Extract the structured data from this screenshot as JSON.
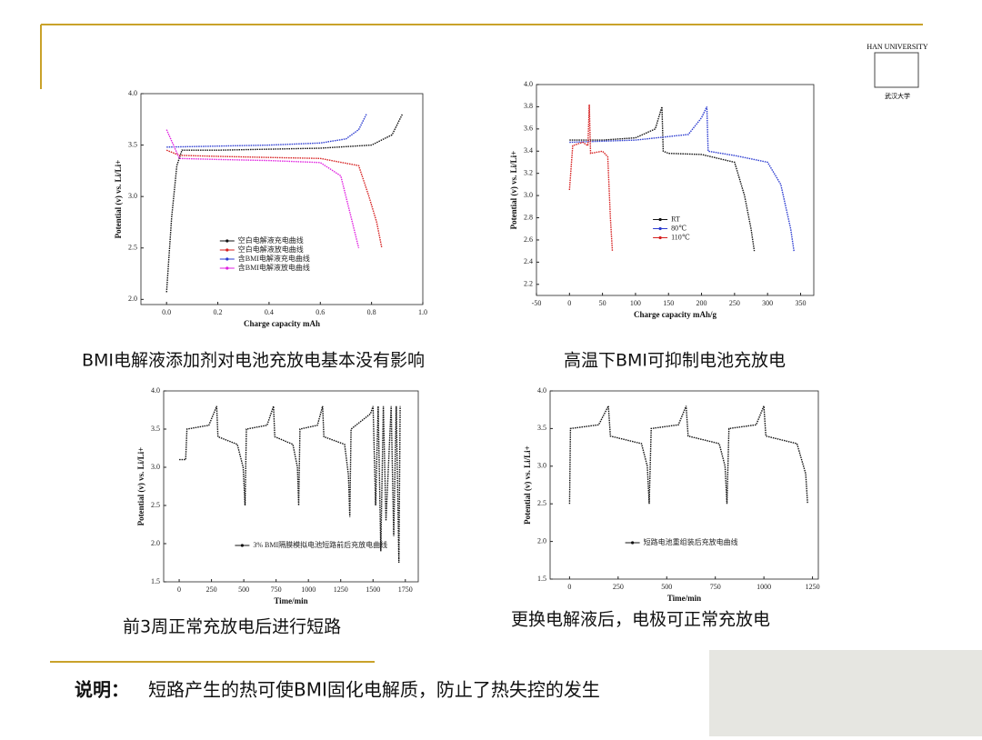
{
  "slide": {
    "logo_top": "HAN UNIVERSITY",
    "logo_bottom": "武汉大学",
    "note_label": "说明：",
    "note_text": "短路产生的热可使BMI固化电解质，防止了热失控的发生"
  },
  "chart_data": [
    {
      "type": "line",
      "caption": "BMI电解液添加剂对电池充放电基本没有影响",
      "xlabel": "Charge capacity mAh",
      "ylabel": "Potential (v) vs. Li/Li+",
      "xlim": [
        -0.1,
        1.0
      ],
      "xticks": [
        {
          "value": 0,
          "label": "0.0"
        },
        0.2,
        0.4,
        0.6,
        0.8,
        {
          "value": 1,
          "label": "1.0"
        }
      ],
      "ylim": [
        1.95,
        4.0
      ],
      "yticks": [
        {
          "value": 2,
          "label": "2.0"
        },
        2.5,
        {
          "value": 3,
          "label": "3.0"
        },
        3.5,
        {
          "value": 4,
          "label": "4.0"
        }
      ],
      "legend": "lower center",
      "series": [
        {
          "name": "空白电解液充电曲线",
          "color": "#111111",
          "x": [
            0,
            0.02,
            0.04,
            0.06,
            0.2,
            0.4,
            0.6,
            0.8,
            0.88,
            0.92
          ],
          "values": [
            2.07,
            2.8,
            3.3,
            3.45,
            3.45,
            3.46,
            3.47,
            3.5,
            3.6,
            3.8
          ]
        },
        {
          "name": "空白电解液放电曲线",
          "color": "#d62020",
          "x": [
            0,
            0.05,
            0.2,
            0.4,
            0.6,
            0.75,
            0.79,
            0.82,
            0.84
          ],
          "values": [
            3.45,
            3.4,
            3.39,
            3.38,
            3.37,
            3.3,
            3.0,
            2.75,
            2.5
          ]
        },
        {
          "name": "含BMI电解液充电曲线",
          "color": "#2a3ad0",
          "x": [
            0,
            0.2,
            0.4,
            0.6,
            0.7,
            0.75,
            0.78
          ],
          "values": [
            3.48,
            3.49,
            3.5,
            3.52,
            3.56,
            3.65,
            3.8
          ]
        },
        {
          "name": "含BMI电解液放电曲线",
          "color": "#e020e0",
          "x": [
            0,
            0.05,
            0.2,
            0.4,
            0.6,
            0.68,
            0.72,
            0.75
          ],
          "values": [
            3.65,
            3.37,
            3.36,
            3.35,
            3.33,
            3.2,
            2.8,
            2.5
          ]
        }
      ]
    },
    {
      "type": "line",
      "caption": "高温下BMI可抑制电池充放电",
      "xlabel": "Charge capacity mAh/g",
      "ylabel": "Potential (v) vs. Li/Li+",
      "xlim": [
        -50,
        370
      ],
      "xticks": [
        -50,
        0,
        50,
        100,
        150,
        200,
        250,
        300,
        350
      ],
      "ylim": [
        2.1,
        4.0
      ],
      "yticks": [
        2.2,
        2.4,
        2.6,
        2.8,
        {
          "value": 3,
          "label": "3.0"
        },
        3.2,
        3.4,
        3.6,
        3.8,
        {
          "value": 4,
          "label": "4.0"
        }
      ],
      "legend": "center",
      "series": [
        {
          "name": "RT",
          "color": "#111111",
          "x": [
            0,
            50,
            100,
            130,
            140,
            142,
            150,
            200,
            250,
            265,
            275,
            280
          ],
          "values": [
            3.5,
            3.5,
            3.52,
            3.6,
            3.8,
            3.4,
            3.38,
            3.37,
            3.3,
            3.0,
            2.7,
            2.5
          ]
        },
        {
          "name": "80℃",
          "color": "#2a3ad0",
          "x": [
            0,
            100,
            180,
            200,
            208,
            210,
            250,
            300,
            320,
            335,
            340
          ],
          "values": [
            3.48,
            3.5,
            3.55,
            3.7,
            3.8,
            3.4,
            3.36,
            3.3,
            3.1,
            2.7,
            2.5
          ]
        },
        {
          "name": "110℃",
          "color": "#d62020",
          "x": [
            0,
            5,
            20,
            28,
            30,
            32,
            50,
            58,
            62,
            65
          ],
          "values": [
            3.05,
            3.45,
            3.48,
            3.45,
            3.82,
            3.38,
            3.4,
            3.35,
            2.8,
            2.5
          ]
        }
      ]
    },
    {
      "type": "line",
      "caption": "前3周正常充放电后进行短路",
      "xlabel": "Time/min",
      "ylabel": "Potential (v) vs. Li/Li+",
      "xlim": [
        -120,
        1850
      ],
      "xticks": [
        0,
        250,
        500,
        750,
        1000,
        1250,
        1500,
        1750
      ],
      "ylim": [
        1.5,
        4.0
      ],
      "yticks": [
        1.5,
        {
          "value": 2,
          "label": "2.0"
        },
        2.5,
        {
          "value": 3,
          "label": "3.0"
        },
        3.5,
        {
          "value": 4,
          "label": "4.0"
        }
      ],
      "legend": "lower center",
      "series": [
        {
          "name": "3% BMI隔膜模拟电池短路前后充放电曲线",
          "color": "#111111",
          "x": [
            0,
            50,
            60,
            230,
            290,
            300,
            450,
            495,
            510,
            520,
            680,
            730,
            740,
            880,
            915,
            925,
            935,
            1070,
            1110,
            1120,
            1280,
            1310,
            1320,
            1330,
            1480,
            1500,
            1520,
            1540,
            1560,
            1580,
            1600,
            1640,
            1660,
            1680,
            1700,
            1710
          ],
          "values": [
            3.1,
            3.1,
            3.5,
            3.55,
            3.8,
            3.4,
            3.3,
            3.0,
            2.5,
            3.5,
            3.55,
            3.8,
            3.4,
            3.3,
            3.0,
            2.5,
            3.5,
            3.55,
            3.8,
            3.4,
            3.3,
            2.9,
            2.35,
            3.5,
            3.7,
            3.8,
            2.5,
            3.8,
            1.9,
            3.8,
            2.3,
            3.8,
            2.1,
            3.8,
            1.75,
            3.8
          ]
        }
      ]
    },
    {
      "type": "line",
      "caption": "更换电解液后，电极可正常充放电",
      "xlabel": "Time/min",
      "ylabel": "Potential (v) vs. Li/Li+",
      "xlim": [
        -100,
        1280
      ],
      "xticks": [
        0,
        250,
        500,
        750,
        1000,
        1250
      ],
      "ylim": [
        1.5,
        4.0
      ],
      "yticks": [
        1.5,
        {
          "value": 2,
          "label": "2.0"
        },
        2.5,
        {
          "value": 3,
          "label": "3.0"
        },
        3.5,
        {
          "value": 4,
          "label": "4.0"
        }
      ],
      "legend": "lower center",
      "series": [
        {
          "name": "短路电池重组装后充放电曲线",
          "color": "#111111",
          "x": [
            0,
            5,
            150,
            200,
            210,
            370,
            400,
            410,
            420,
            560,
            600,
            610,
            770,
            800,
            810,
            820,
            960,
            1000,
            1010,
            1170,
            1215,
            1225
          ],
          "values": [
            2.5,
            3.5,
            3.55,
            3.8,
            3.4,
            3.3,
            3.0,
            2.5,
            3.5,
            3.55,
            3.8,
            3.4,
            3.3,
            3.0,
            2.5,
            3.5,
            3.55,
            3.8,
            3.4,
            3.3,
            2.9,
            2.5
          ]
        }
      ]
    }
  ]
}
